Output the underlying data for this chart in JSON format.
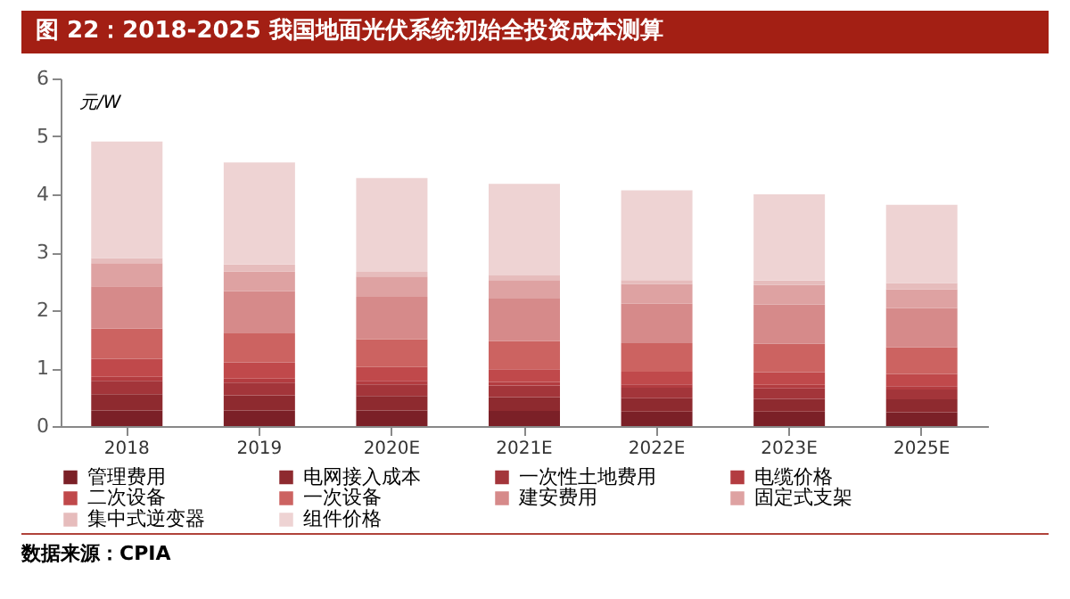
{
  "chart_data": {
    "type": "bar",
    "stacked": true,
    "title": "图 22：2018-2025 我国地面光伏系统初始全投资成本测算",
    "ylabel": "元/W",
    "annotations": [
      "数据来源：CPIA"
    ],
    "categories": [
      "2018",
      "2019",
      "2020E",
      "2021E",
      "2022E",
      "2023E",
      "2025E"
    ],
    "ylim": [
      0,
      6
    ],
    "yticks": [
      0,
      1,
      2,
      3,
      4,
      5,
      6
    ],
    "grid": false,
    "legend": "bottom",
    "series": [
      {
        "name": "管理费用",
        "color": "#7b2027",
        "values": [
          0.27,
          0.27,
          0.27,
          0.26,
          0.25,
          0.25,
          0.24
        ]
      },
      {
        "name": "电网接入成本",
        "color": "#8e2a2f",
        "values": [
          0.28,
          0.26,
          0.25,
          0.24,
          0.23,
          0.22,
          0.22
        ]
      },
      {
        "name": "一次性土地费用",
        "color": "#a3353a",
        "values": [
          0.23,
          0.22,
          0.2,
          0.2,
          0.18,
          0.18,
          0.17
        ]
      },
      {
        "name": "电缆价格",
        "color": "#b33c40",
        "values": [
          0.07,
          0.07,
          0.06,
          0.06,
          0.06,
          0.06,
          0.06
        ]
      },
      {
        "name": "二次设备",
        "color": "#c0494b",
        "values": [
          0.31,
          0.28,
          0.24,
          0.22,
          0.22,
          0.22,
          0.21
        ]
      },
      {
        "name": "一次设备",
        "color": "#cc6361",
        "values": [
          0.52,
          0.5,
          0.48,
          0.49,
          0.49,
          0.49,
          0.46
        ]
      },
      {
        "name": "建安费用",
        "color": "#d68a8a",
        "values": [
          0.73,
          0.73,
          0.73,
          0.73,
          0.68,
          0.68,
          0.68
        ]
      },
      {
        "name": "固定式支架",
        "color": "#dea2a2",
        "values": [
          0.4,
          0.34,
          0.35,
          0.32,
          0.34,
          0.34,
          0.32
        ]
      },
      {
        "name": "集中式逆变器",
        "color": "#e6bcbc",
        "values": [
          0.09,
          0.12,
          0.08,
          0.08,
          0.07,
          0.07,
          0.11
        ]
      },
      {
        "name": "组件价格",
        "color": "#eed3d3",
        "values": [
          2.01,
          1.76,
          1.62,
          1.58,
          1.55,
          1.49,
          1.35
        ]
      }
    ]
  }
}
